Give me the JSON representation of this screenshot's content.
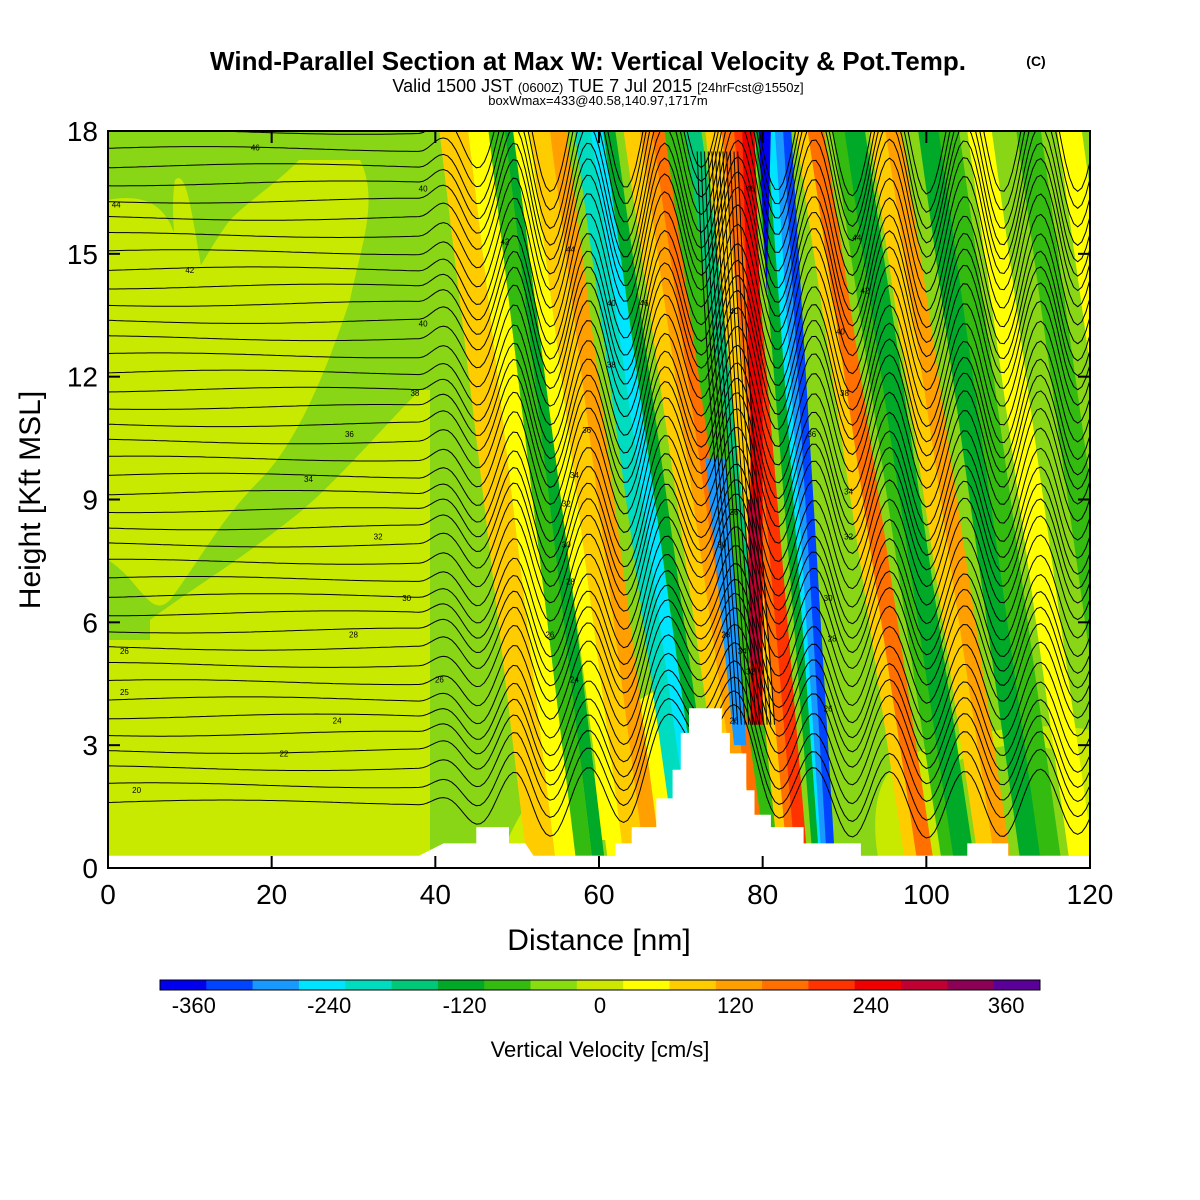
{
  "chart_data": {
    "type": "heatmap",
    "title": "Wind-Parallel Section at Max W: Vertical Velocity & Pot.Temp.",
    "title_mark": "(C)",
    "subtitle_parts": [
      "Valid 1500 JST",
      "(0600Z)",
      "TUE 7 Jul 2015",
      "[24hrFcst@1550z]"
    ],
    "subtitle2": "boxWmax=433@40.58,140.97,1717m",
    "xlabel": "Distance [nm]",
    "ylabel": "Height [Kft MSL]",
    "xlim": [
      0,
      120
    ],
    "ylim": [
      0,
      18
    ],
    "xticks": [
      0,
      20,
      40,
      60,
      80,
      100,
      120
    ],
    "yticks": [
      0,
      3,
      6,
      9,
      12,
      15,
      18
    ],
    "colorbar": {
      "label": "Vertical Velocity [cm/s]",
      "ticks": [
        -360,
        -240,
        -120,
        0,
        120,
        240,
        360
      ],
      "range": [
        -390,
        390
      ],
      "colors": [
        "#0000ee",
        "#0044ff",
        "#1899ff",
        "#00e5ff",
        "#00dcc0",
        "#00c878",
        "#00aa28",
        "#33bb10",
        "#88dd10",
        "#cce800",
        "#ffff00",
        "#ffcc00",
        "#ffa000",
        "#ff7000",
        "#ff3300",
        "#ee0000",
        "#c00033",
        "#8c0055",
        "#5a0099"
      ]
    },
    "terrain": [
      [
        0,
        0.3
      ],
      [
        38,
        0.3
      ],
      [
        41,
        0.6
      ],
      [
        45,
        0.6
      ],
      [
        45,
        1.0
      ],
      [
        49,
        1.0
      ],
      [
        49,
        0.6
      ],
      [
        51,
        0.6
      ],
      [
        52,
        0.3
      ],
      [
        62,
        0.3
      ],
      [
        62,
        0.6
      ],
      [
        64,
        0.6
      ],
      [
        64,
        1.0
      ],
      [
        67,
        1.0
      ],
      [
        67,
        1.7
      ],
      [
        69,
        1.7
      ],
      [
        69,
        2.4
      ],
      [
        70,
        2.4
      ],
      [
        70,
        3.3
      ],
      [
        71,
        3.3
      ],
      [
        71,
        3.9
      ],
      [
        75,
        3.9
      ],
      [
        75,
        3.3
      ],
      [
        76,
        3.3
      ],
      [
        76,
        2.8
      ],
      [
        78,
        2.8
      ],
      [
        78,
        1.9
      ],
      [
        79,
        1.9
      ],
      [
        79,
        1.3
      ],
      [
        81,
        1.3
      ],
      [
        81,
        1.0
      ],
      [
        85,
        1.0
      ],
      [
        85,
        0.6
      ],
      [
        92,
        0.6
      ],
      [
        92,
        0.3
      ],
      [
        105,
        0.3
      ],
      [
        105,
        0.6
      ],
      [
        110,
        0.6
      ],
      [
        110,
        0.3
      ],
      [
        120,
        0.3
      ]
    ],
    "theta_labels": [
      {
        "x": 18,
        "y": 17.6,
        "t": "46"
      },
      {
        "x": 1,
        "y": 16.2,
        "t": "44"
      },
      {
        "x": 10,
        "y": 14.6,
        "t": "42"
      },
      {
        "x": 38.5,
        "y": 16.6,
        "t": "40"
      },
      {
        "x": 38.5,
        "y": 13.3,
        "t": "40"
      },
      {
        "x": 37.5,
        "y": 11.6,
        "t": "38"
      },
      {
        "x": 29.5,
        "y": 10.6,
        "t": "36"
      },
      {
        "x": 24.5,
        "y": 9.5,
        "t": "34"
      },
      {
        "x": 33,
        "y": 8.1,
        "t": "32"
      },
      {
        "x": 36.5,
        "y": 6.6,
        "t": "30"
      },
      {
        "x": 30,
        "y": 5.7,
        "t": "28"
      },
      {
        "x": 2,
        "y": 5.3,
        "t": "26"
      },
      {
        "x": 2,
        "y": 4.3,
        "t": "25"
      },
      {
        "x": 28,
        "y": 3.6,
        "t": "24"
      },
      {
        "x": 21.5,
        "y": 2.8,
        "t": "22"
      },
      {
        "x": 3.5,
        "y": 1.9,
        "t": "20"
      },
      {
        "x": 40.5,
        "y": 4.6,
        "t": "26"
      },
      {
        "x": 48.5,
        "y": 15.3,
        "t": "42"
      },
      {
        "x": 56.5,
        "y": 15.1,
        "t": "44"
      },
      {
        "x": 61.5,
        "y": 13.8,
        "t": "40"
      },
      {
        "x": 65.5,
        "y": 13.8,
        "t": "46"
      },
      {
        "x": 61.5,
        "y": 12.3,
        "t": "38"
      },
      {
        "x": 58.5,
        "y": 10.7,
        "t": "36"
      },
      {
        "x": 57,
        "y": 9.6,
        "t": "34"
      },
      {
        "x": 56,
        "y": 8.9,
        "t": "32"
      },
      {
        "x": 56,
        "y": 7.9,
        "t": "30"
      },
      {
        "x": 56.5,
        "y": 7.0,
        "t": "28"
      },
      {
        "x": 54,
        "y": 5.7,
        "t": "26"
      },
      {
        "x": 57,
        "y": 4.6,
        "t": "24"
      },
      {
        "x": 78.5,
        "y": 16.6,
        "t": "46"
      },
      {
        "x": 76.5,
        "y": 13.6,
        "t": "40"
      },
      {
        "x": 76.5,
        "y": 8.7,
        "t": "36"
      },
      {
        "x": 75,
        "y": 7.9,
        "t": "30"
      },
      {
        "x": 75.5,
        "y": 5.7,
        "t": "28"
      },
      {
        "x": 77.5,
        "y": 5.3,
        "t": "34"
      },
      {
        "x": 78.5,
        "y": 4.8,
        "t": "32"
      },
      {
        "x": 76.5,
        "y": 3.6,
        "t": "26"
      },
      {
        "x": 91.5,
        "y": 15.4,
        "t": "44"
      },
      {
        "x": 92.5,
        "y": 14.1,
        "t": "42"
      },
      {
        "x": 89.5,
        "y": 13.1,
        "t": "40"
      },
      {
        "x": 90,
        "y": 11.6,
        "t": "38"
      },
      {
        "x": 86,
        "y": 10.6,
        "t": "36"
      },
      {
        "x": 90.5,
        "y": 9.2,
        "t": "34"
      },
      {
        "x": 90.5,
        "y": 8.1,
        "t": "32"
      },
      {
        "x": 88,
        "y": 6.6,
        "t": "30"
      },
      {
        "x": 88.5,
        "y": 5.6,
        "t": "28"
      },
      {
        "x": 88,
        "y": 3.9,
        "t": "26"
      }
    ]
  }
}
